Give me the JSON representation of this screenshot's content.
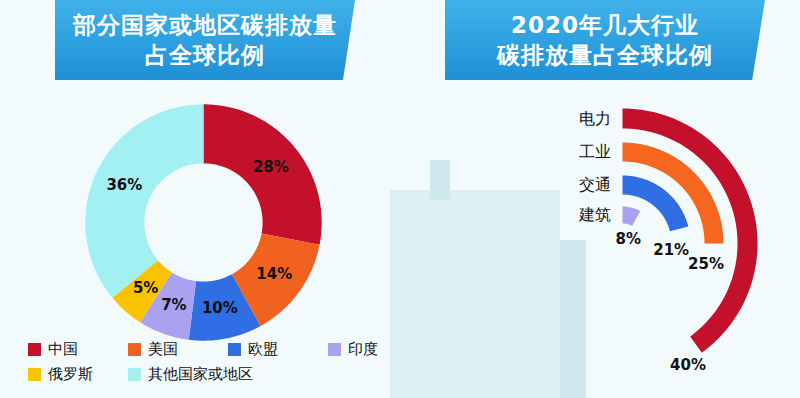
{
  "chart_data": [
    {
      "type": "pie",
      "title": "部分国家或地区碳排放量\n占全球比例",
      "categories": [
        "中国",
        "美国",
        "欧盟",
        "印度",
        "俄罗斯",
        "其他国家或地区"
      ],
      "values": [
        28,
        14,
        10,
        7,
        5,
        36
      ],
      "value_labels": [
        "28%",
        "14%",
        "10%",
        "7%",
        "5%",
        "36%"
      ],
      "colors": [
        "#c3102b",
        "#f2621f",
        "#2f6fe3",
        "#a8a2f0",
        "#f8c300",
        "#a2f0f2"
      ],
      "data_labels": true,
      "legend": "bottom"
    },
    {
      "type": "radialbar",
      "title": "2020年几大行业\n碳排放量占全球比例",
      "categories": [
        "电力",
        "工业",
        "交通",
        "建筑"
      ],
      "values": [
        40,
        25,
        21,
        8
      ],
      "value_labels": [
        "40%",
        "25%",
        "21%",
        "8%"
      ],
      "colors": [
        "#c3102b",
        "#f5671f",
        "#2f6fe3",
        "#a8a2f0"
      ],
      "xlim": [
        0,
        100
      ],
      "data_labels": true,
      "tick_labels": false
    }
  ]
}
